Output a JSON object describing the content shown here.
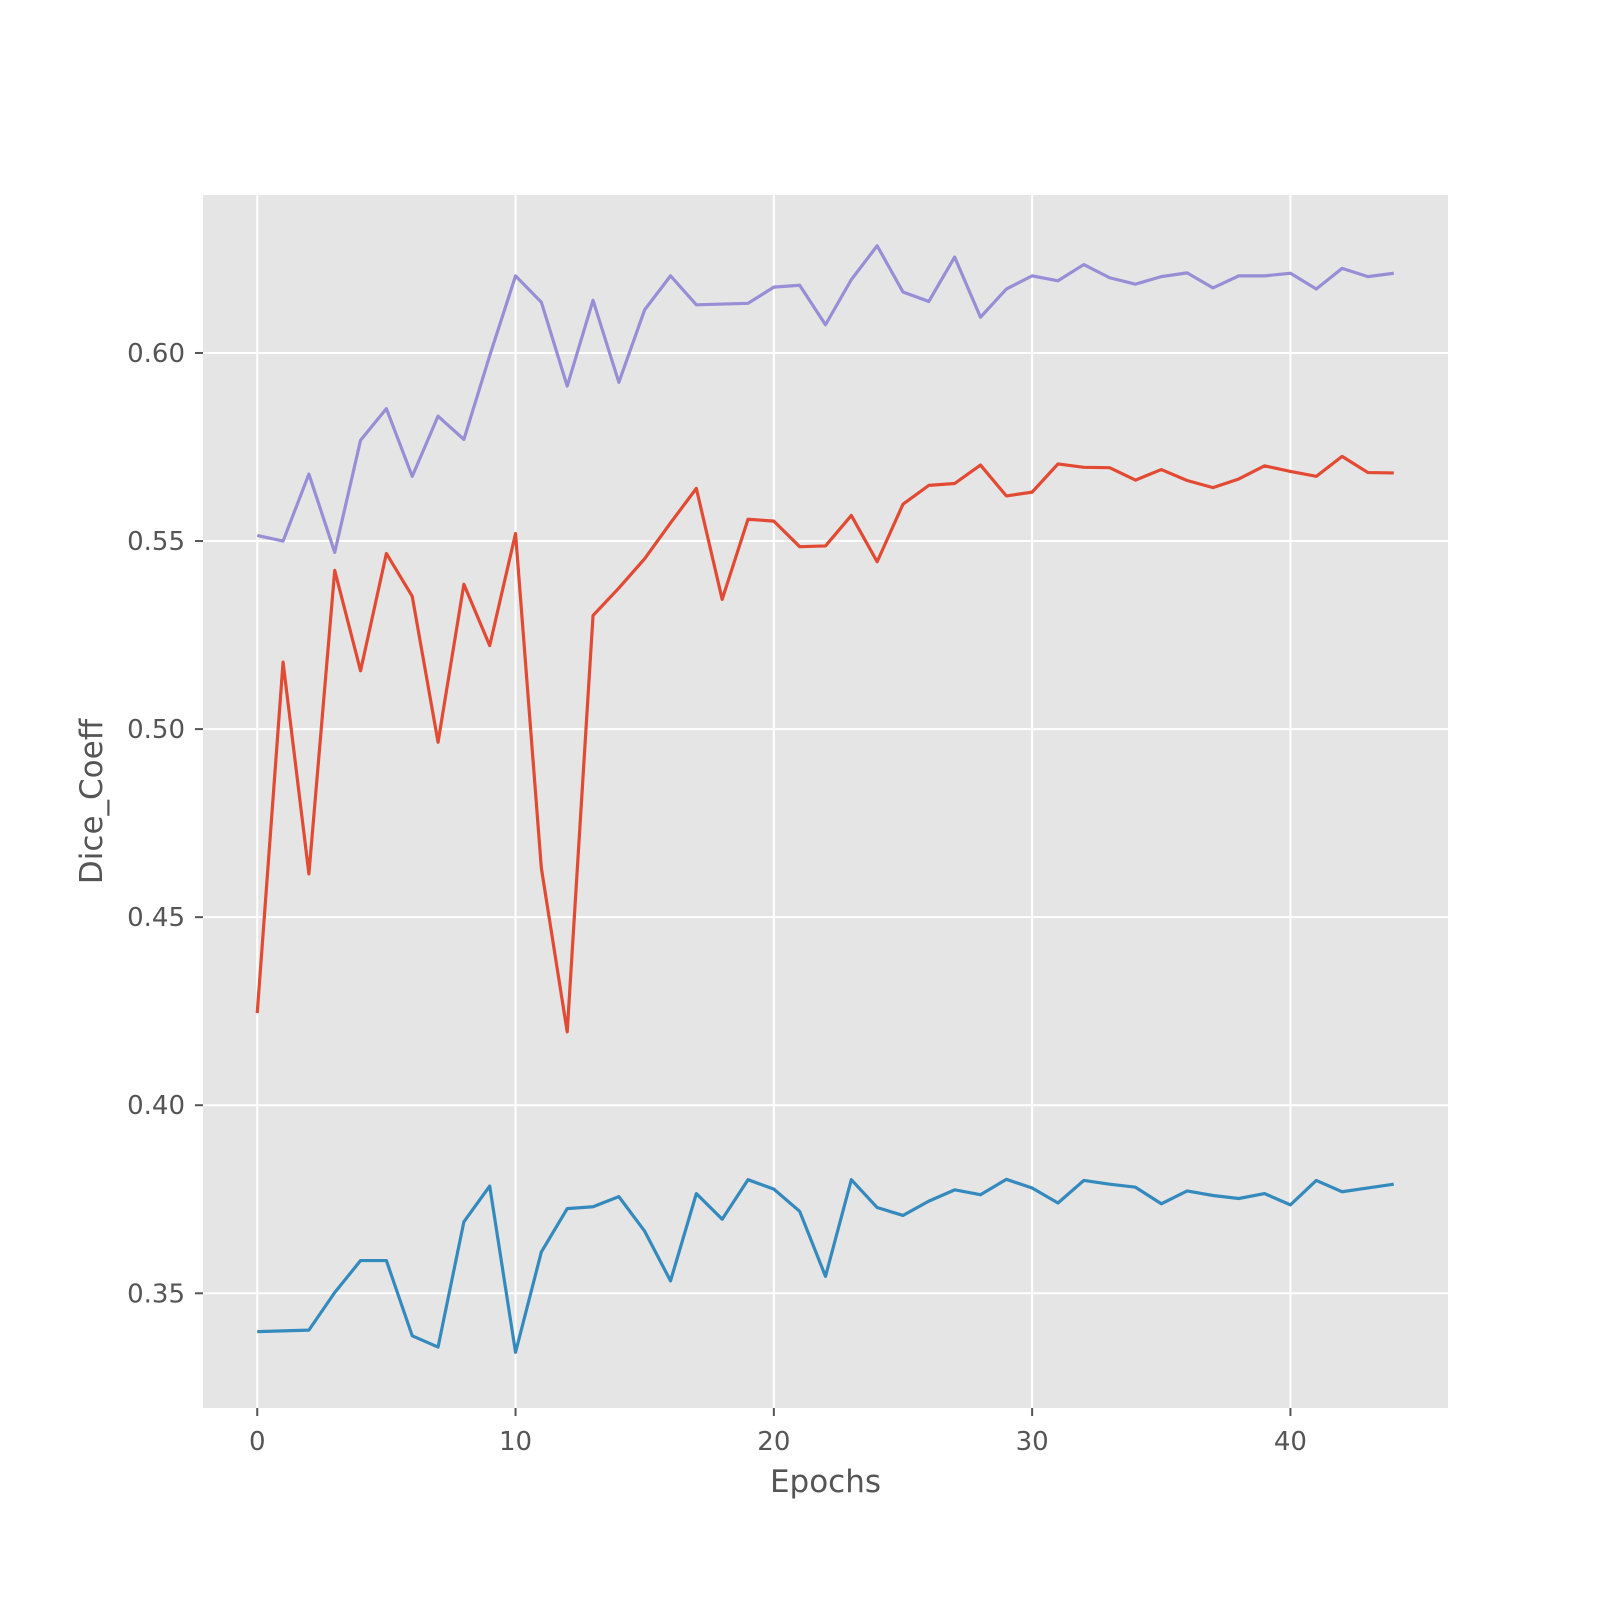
{
  "chart_data": {
    "type": "line",
    "title": "",
    "xlabel": "Epochs",
    "ylabel": "Dice_Coeff",
    "xlim": [
      -2.1,
      46.1
    ],
    "ylim": [
      0.3195,
      0.642
    ],
    "xticks": [
      0,
      10,
      20,
      30,
      40
    ],
    "yticks": [
      0.35,
      0.4,
      0.45,
      0.5,
      0.55,
      0.6
    ],
    "ytick_labels": [
      "0.35",
      "0.40",
      "0.45",
      "0.50",
      "0.55",
      "0.60"
    ],
    "grid": true,
    "legend": "none",
    "colors": {
      "plot_background": "#e5e5e5",
      "grid": "#ffffff",
      "text": "#555555"
    },
    "series": [
      {
        "color": "#e24a33",
        "x": [
          0,
          1,
          2,
          3,
          4,
          5,
          6,
          7,
          8,
          9,
          10,
          11,
          12,
          13,
          14,
          15,
          16,
          17,
          18,
          19,
          20,
          21,
          22,
          23,
          24,
          25,
          26,
          27,
          28,
          29,
          30,
          31,
          32,
          33,
          34,
          35,
          36,
          37,
          38,
          39,
          40,
          41,
          42,
          43,
          44
        ],
        "values": [
          0.4245,
          0.5178,
          0.4615,
          0.5422,
          0.5155,
          0.5467,
          0.5353,
          0.4965,
          0.5385,
          0.5222,
          0.552,
          0.463,
          0.4195,
          0.5302,
          0.5375,
          0.5453,
          0.5548,
          0.564,
          0.5345,
          0.5558,
          0.5553,
          0.5485,
          0.5487,
          0.5568,
          0.5445,
          0.5598,
          0.5648,
          0.5653,
          0.5702,
          0.562,
          0.563,
          0.5705,
          0.5696,
          0.5695,
          0.5662,
          0.569,
          0.5661,
          0.5642,
          0.5665,
          0.57,
          0.5685,
          0.5672,
          0.5725,
          0.5682,
          0.5681
        ]
      },
      {
        "color": "#348abd",
        "x": [
          0,
          1,
          2,
          3,
          4,
          5,
          6,
          7,
          8,
          9,
          10,
          11,
          12,
          13,
          14,
          15,
          16,
          17,
          18,
          19,
          20,
          21,
          22,
          23,
          24,
          25,
          26,
          27,
          28,
          29,
          30,
          31,
          32,
          33,
          34,
          35,
          36,
          37,
          38,
          39,
          40,
          41,
          42,
          43,
          44
        ],
        "values": [
          0.3398,
          0.34,
          0.3402,
          0.3502,
          0.3587,
          0.3587,
          0.3387,
          0.3357,
          0.369,
          0.3785,
          0.3343,
          0.361,
          0.3725,
          0.373,
          0.3757,
          0.3665,
          0.3533,
          0.3765,
          0.3697,
          0.3802,
          0.3777,
          0.3718,
          0.3545,
          0.3802,
          0.3728,
          0.3707,
          0.3745,
          0.3775,
          0.3762,
          0.3803,
          0.378,
          0.374,
          0.38,
          0.379,
          0.3782,
          0.3738,
          0.3772,
          0.376,
          0.3752,
          0.3765,
          0.3735,
          0.38,
          0.377,
          0.378,
          0.379
        ]
      },
      {
        "color": "#988ed5",
        "x": [
          0,
          1,
          2,
          3,
          4,
          5,
          6,
          7,
          8,
          9,
          10,
          11,
          12,
          13,
          14,
          15,
          16,
          17,
          18,
          19,
          20,
          21,
          22,
          23,
          24,
          25,
          26,
          27,
          28,
          29,
          30,
          31,
          32,
          33,
          34,
          35,
          36,
          37,
          38,
          39,
          40,
          41,
          42,
          43,
          44
        ],
        "values": [
          0.5515,
          0.55,
          0.5678,
          0.547,
          0.5768,
          0.5852,
          0.5672,
          0.5832,
          0.577,
          0.5993,
          0.6205,
          0.6135,
          0.5912,
          0.614,
          0.5922,
          0.6115,
          0.6205,
          0.6128,
          0.613,
          0.6132,
          0.6175,
          0.618,
          0.6075,
          0.6195,
          0.6285,
          0.6162,
          0.6137,
          0.6255,
          0.6095,
          0.617,
          0.6205,
          0.6192,
          0.6235,
          0.62,
          0.6183,
          0.6203,
          0.6213,
          0.6173,
          0.6205,
          0.6205,
          0.6212,
          0.617,
          0.6225,
          0.6203,
          0.6212
        ]
      }
    ]
  }
}
